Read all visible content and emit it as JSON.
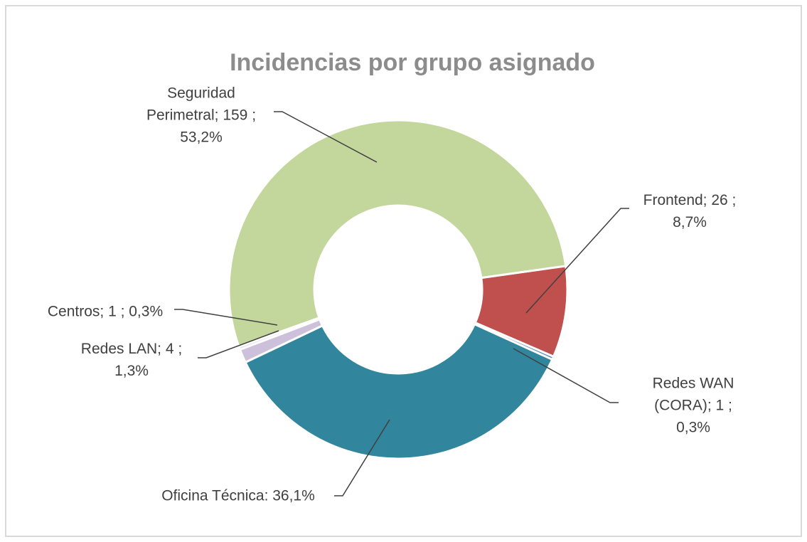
{
  "chart_data": {
    "type": "donut",
    "title": "Incidencias por grupo asignado",
    "categories": [
      "Frontend",
      "Redes WAN (CORA)",
      "Oficina Técnica",
      "Redes LAN",
      "Centros",
      "Seguridad Perimetral"
    ],
    "values": [
      8.7,
      0.3,
      36.1,
      1.3,
      0.3,
      53.2
    ],
    "value_labels": [
      "Frontend; 26 ;\n8,7%",
      "Redes WAN\n(CORA); 1 ; 0,3%",
      "Oficina Técnica: 36,1%",
      "Redes LAN; 4 ;\n1,3%",
      "Centros; 1 ; 0,3%",
      "Seguridad\nPerimetral; 159 ;\n53,2%"
    ],
    "colors": [
      "#c0504d",
      "#4f81bd",
      "#31859c",
      "#ccc0da",
      "#e6e0ec",
      "#c3d69b"
    ]
  }
}
